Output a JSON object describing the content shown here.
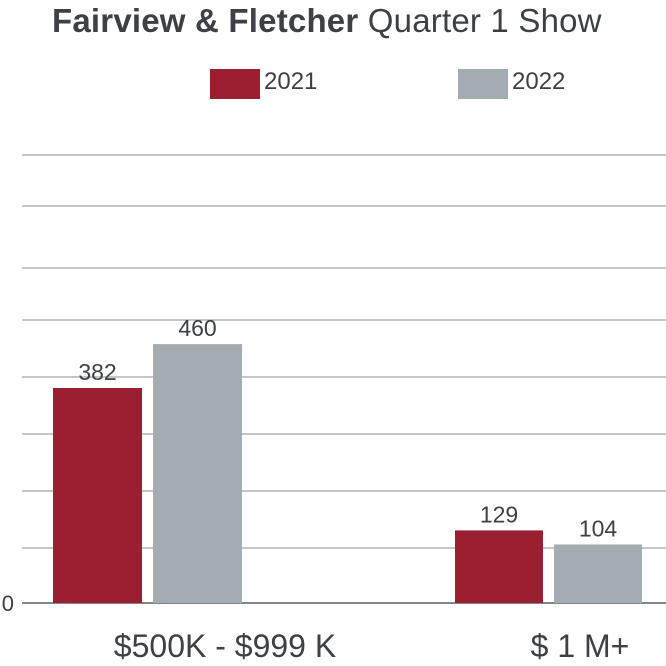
{
  "chart_data": {
    "type": "bar",
    "title_bold": "Fairview & Fletcher",
    "title_rest": " Quarter 1 Show",
    "categories": [
      "$500K - $999 K",
      "$ 1 M+"
    ],
    "series": [
      {
        "name": "2021",
        "color": "#9c1f31",
        "values": [
          382,
          129
        ]
      },
      {
        "name": "2022",
        "color": "#a3acb1",
        "values": [
          460,
          104
        ]
      }
    ],
    "ylim": [
      0,
      790
    ],
    "yticks": [
      0
    ],
    "grid": true,
    "legend_position": "top",
    "data_labels": true,
    "xlabel": "",
    "ylabel": ""
  }
}
